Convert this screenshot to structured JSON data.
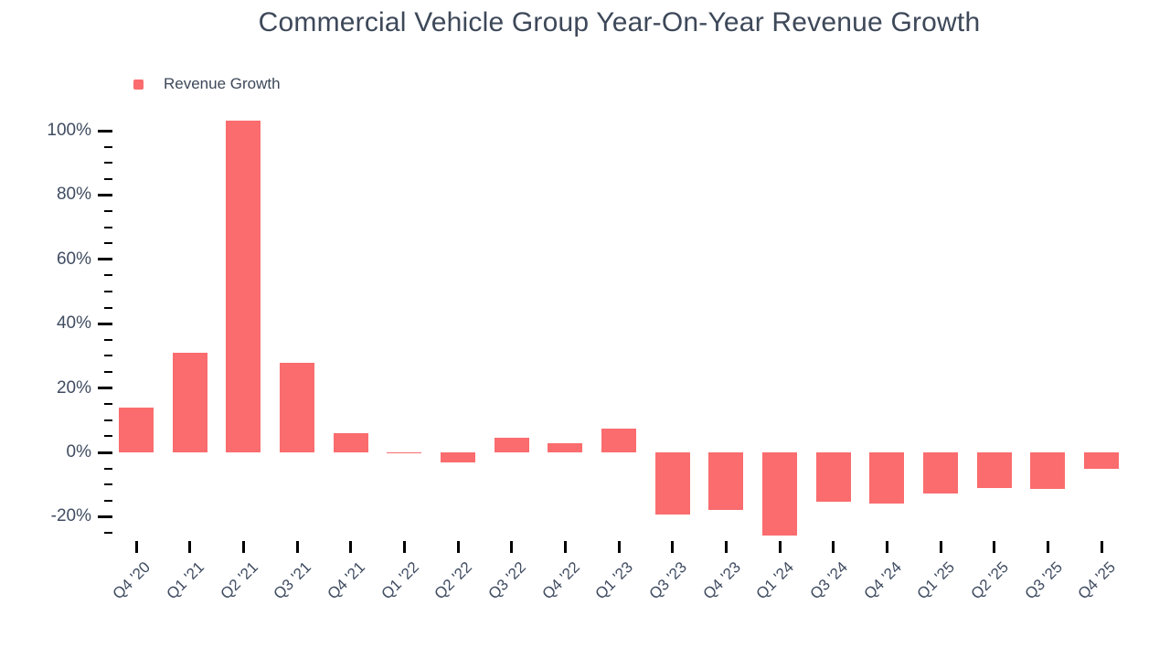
{
  "chart_data": {
    "type": "bar",
    "title": "Commercial Vehicle Group Year-On-Year Revenue Growth",
    "legend": [
      "Revenue Growth"
    ],
    "categories": [
      "Q4 '20",
      "Q1 '21",
      "Q2 '21",
      "Q3 '21",
      "Q4 '21",
      "Q1 '22",
      "Q2 '22",
      "Q3 '22",
      "Q4 '22",
      "Q1 '23",
      "Q3 '23",
      "Q4 '23",
      "Q1 '24",
      "Q3 '24",
      "Q4 '24",
      "Q1 '25",
      "Q2 '25",
      "Q3 '25",
      "Q4 '25"
    ],
    "values": [
      14,
      31,
      103,
      27.8,
      6,
      -0.4,
      -3,
      4.5,
      2.7,
      7.3,
      -19.3,
      -17.8,
      -25.8,
      -15.4,
      -16,
      -12.8,
      -11.2,
      -11.5,
      -5.1
    ],
    "xlabel": "",
    "ylabel": "",
    "ylim": [
      -28,
      104
    ],
    "yticks": [
      {
        "value": 100,
        "label": "100%"
      },
      {
        "value": 80,
        "label": "80%"
      },
      {
        "value": 60,
        "label": "60%"
      },
      {
        "value": 40,
        "label": "40%"
      },
      {
        "value": 20,
        "label": "20%"
      },
      {
        "value": 0,
        "label": "0%"
      },
      {
        "value": -20,
        "label": "-20%"
      }
    ],
    "minor_tick_step": 5,
    "minor_tick_range": [
      -25,
      100
    ],
    "grid": false,
    "legend_position": "top-left",
    "colors": {
      "bar": "#fa6c6e",
      "text": "#3d4859",
      "tick": "#000000"
    }
  }
}
